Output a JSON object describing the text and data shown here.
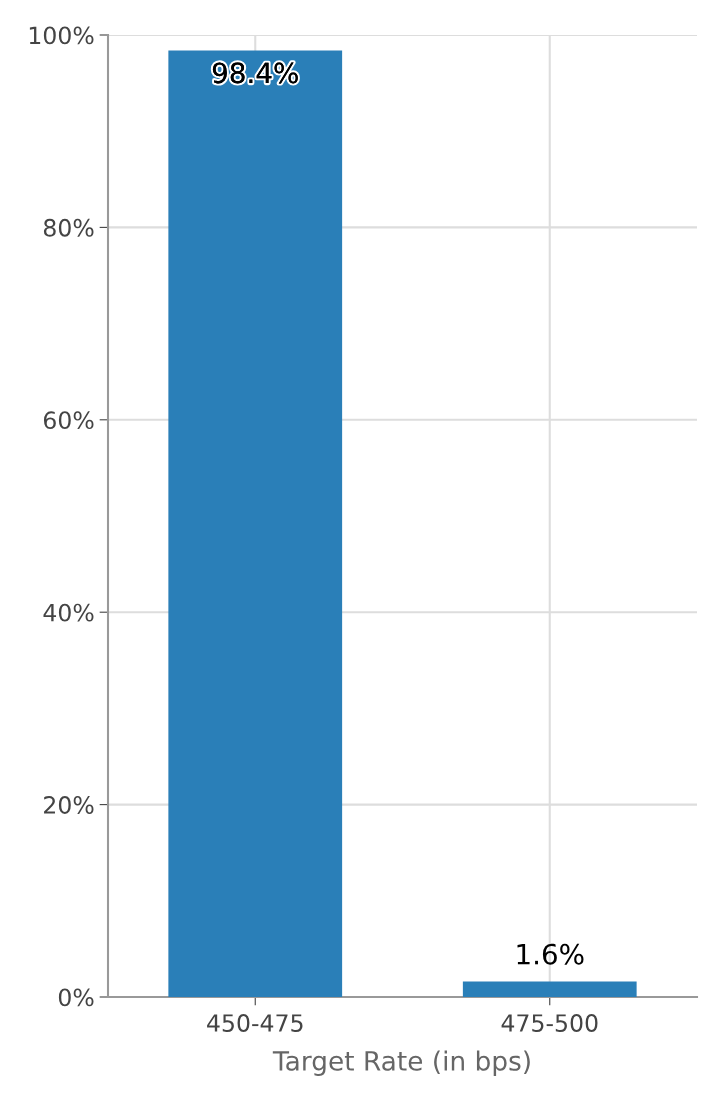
{
  "chart_data": {
    "type": "bar",
    "xlabel": "Target Rate (in bps)",
    "categories": [
      "450-475",
      "475-500"
    ],
    "values": [
      98.4,
      1.6
    ],
    "value_labels": [
      "98.4%",
      "1.6%"
    ],
    "color": "#2a7fb8",
    "ylim": [
      0,
      100
    ],
    "yticks": [
      {
        "value": 0,
        "label": "0%"
      },
      {
        "value": 20,
        "label": "20%"
      },
      {
        "value": 40,
        "label": "40%"
      },
      {
        "value": 60,
        "label": "60%"
      },
      {
        "value": 80,
        "label": "80%"
      },
      {
        "value": 100,
        "label": "100%"
      }
    ],
    "grid": true,
    "legend": false
  }
}
